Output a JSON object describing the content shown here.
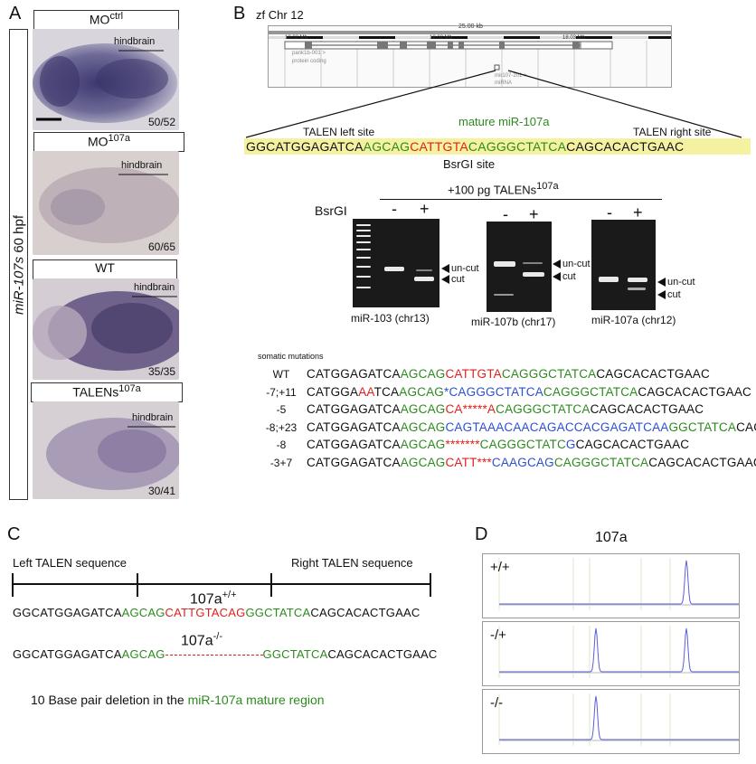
{
  "panels": {
    "A": "A",
    "B": "B",
    "C": "C",
    "D": "D"
  },
  "panelA": {
    "side_label": "miR-107s 60 hpf",
    "side_label_italic": "miR-107s",
    "side_label_rest": " 60 hpf",
    "rows": [
      {
        "label_main": "MO",
        "label_sup": "ctrl",
        "region": "hindbrain",
        "count": "50/52"
      },
      {
        "label_main": "MO",
        "label_sup": "107a",
        "region": "hindbrain",
        "count": "60/65"
      },
      {
        "label_main": "WT",
        "label_sup": "",
        "region": "hindbrain",
        "count": "35/35"
      },
      {
        "label_main": "TALENs",
        "label_sup": "107a",
        "region": "hindbrain",
        "count": "30/41"
      }
    ]
  },
  "panelB": {
    "chrom_title": "zf Chr 12",
    "scale_label": "25.00 kb",
    "positions": [
      "18.02 Mb",
      "18.02 Mb",
      "18.03 Mb"
    ],
    "gene1": "pank1b-001 >",
    "gene1_sub": "protein coding",
    "gene2": "mir107-201 >",
    "gene2_sub": "miRNA",
    "talen_left": "TALEN left site",
    "talen_right": "TALEN right site",
    "mature_label": "mature miR-107a",
    "sequence": {
      "part1": "GGCATGGAGATCA",
      "part2": "AGCAG",
      "part3": "CATTGTA",
      "part4": "CAGGGC",
      "part5": "TATCA",
      "part6": "CAGCACACTGAAC"
    },
    "bsrgi_site": "BsrGI site",
    "gel_title_main": "+100 pg TALENs",
    "gel_title_sup": "107a",
    "bsrgi_label": "BsrGI",
    "minus": "-",
    "plus": "+",
    "gels": [
      {
        "label": "miR-103 (chr13)",
        "uncut": "un-cut",
        "cut": "cut"
      },
      {
        "label": "miR-107b (chr17)",
        "uncut": "un-cut",
        "cut": "cut"
      },
      {
        "label": "miR-107a (chr12)",
        "uncut": "un-cut",
        "cut": "cut"
      }
    ],
    "somatic_title": "somatic mutations",
    "mutations": [
      {
        "label": "WT",
        "segments": [
          [
            "k",
            "CATGGAGATCA"
          ],
          [
            "g",
            "AGCAG"
          ],
          [
            "r",
            "CATTGTA"
          ],
          [
            "g",
            "CAGGGCTATCA"
          ],
          [
            "k",
            "CAGCACACTGAAC"
          ]
        ]
      },
      {
        "label": "-7;+11",
        "segments": [
          [
            "k",
            "CATGGA"
          ],
          [
            "r",
            "AA"
          ],
          [
            "k",
            "TCA"
          ],
          [
            "g",
            "AGCAG"
          ],
          [
            "b",
            "*CAGGGCTATCA"
          ],
          [
            "g",
            "CAGGGCTATCA"
          ],
          [
            "k",
            "CAGCACACTGAAC"
          ]
        ]
      },
      {
        "label": "-5",
        "segments": [
          [
            "k",
            "CATGGAGATCA"
          ],
          [
            "g",
            "AGCAG"
          ],
          [
            "r",
            "CA*****A"
          ],
          [
            "g",
            "CAGGGCTATCA"
          ],
          [
            "k",
            "CAGCACACTGAAC"
          ]
        ]
      },
      {
        "label": "-8;+23",
        "segments": [
          [
            "k",
            "CATGGAGATCA"
          ],
          [
            "g",
            "AGCAG"
          ],
          [
            "b",
            "CAGTAAACAACAGACCACGAGATCAA"
          ],
          [
            "g",
            "GGCTATCA"
          ],
          [
            "k",
            "CAGC"
          ]
        ]
      },
      {
        "label": "-8",
        "segments": [
          [
            "k",
            "CATGGAGATCA"
          ],
          [
            "g",
            "AGCAG"
          ],
          [
            "r",
            "*******"
          ],
          [
            "g",
            "CAGGGCTATC"
          ],
          [
            "b",
            "G"
          ],
          [
            "k",
            "CAGCACACTGAAC"
          ]
        ]
      },
      {
        "label": "-3+7",
        "segments": [
          [
            "k",
            "CATGGAGATCA"
          ],
          [
            "g",
            "AGCAG"
          ],
          [
            "r",
            "CATT***"
          ],
          [
            "b",
            "CAAGCAG"
          ],
          [
            "g",
            "CAGGGCTATCA"
          ],
          [
            "k",
            "CAGCACACTGAACAGC"
          ]
        ]
      }
    ]
  },
  "panelC": {
    "left_seq": "Left TALEN sequence",
    "right_seq": "Right TALEN sequence",
    "wt_label_main": "107a",
    "wt_label_sup": "+/+",
    "ko_label_main": "107a",
    "ko_label_sup": "-/-",
    "wt_seq": [
      [
        "k",
        "GGCATGGAGATCA"
      ],
      [
        "g",
        "AGCAG"
      ],
      [
        "r",
        "CATTGTACAG"
      ],
      [
        "g",
        "GGCTATCA"
      ],
      [
        "k",
        "CAGCACACTGAAC"
      ]
    ],
    "ko_seq_left": [
      [
        "k",
        "GGCATGGAGATCA"
      ],
      [
        "g",
        "AGCAG"
      ]
    ],
    "ko_seq_right": [
      [
        "g",
        "GGCTATCA"
      ],
      [
        "k",
        "CAGCACACTGAAC"
      ]
    ],
    "caption_main": "10 Base pair deletion in the ",
    "caption_green": "miR-107a mature region"
  },
  "panelD": {
    "title": "107a",
    "traces": [
      {
        "genotype": "+/+"
      },
      {
        "genotype": "-/+"
      },
      {
        "genotype": "-/-"
      }
    ]
  },
  "colors": {
    "green": "#2d8a1f",
    "red": "#e0201e",
    "blue": "#2b4fd6",
    "highlight": "#f4f2a0",
    "trace": "#5a5fd8"
  }
}
